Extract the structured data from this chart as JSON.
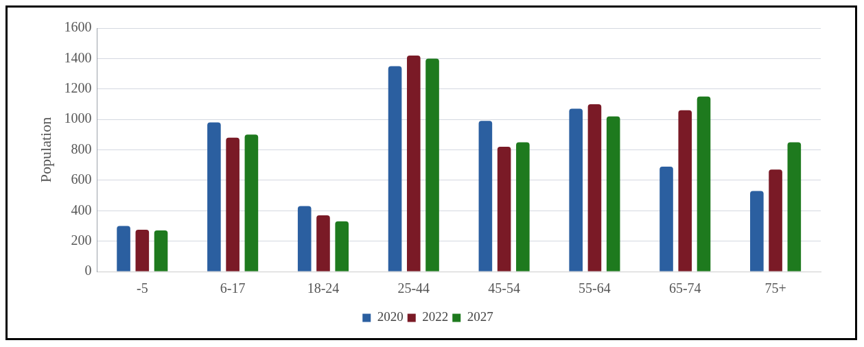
{
  "chart_data": {
    "type": "bar",
    "ylabel": "Population",
    "categories": [
      "-5",
      "6-17",
      "18-24",
      "25-44",
      "45-54",
      "55-64",
      "65-74",
      "75+"
    ],
    "series": [
      {
        "name": "2020",
        "color": "#2b5fa0",
        "values": [
          300,
          980,
          430,
          1350,
          990,
          1070,
          690,
          530
        ]
      },
      {
        "name": "2022",
        "color": "#7a1a26",
        "values": [
          275,
          880,
          370,
          1420,
          820,
          1100,
          1060,
          670
        ]
      },
      {
        "name": "2027",
        "color": "#1e7a1e",
        "values": [
          270,
          900,
          330,
          1400,
          850,
          1020,
          1150,
          850
        ]
      }
    ],
    "ylim": [
      0,
      1600
    ],
    "yticks": [
      0,
      200,
      400,
      600,
      800,
      1000,
      1200,
      1400,
      1600
    ],
    "grid": "y",
    "legend": "bottom"
  }
}
